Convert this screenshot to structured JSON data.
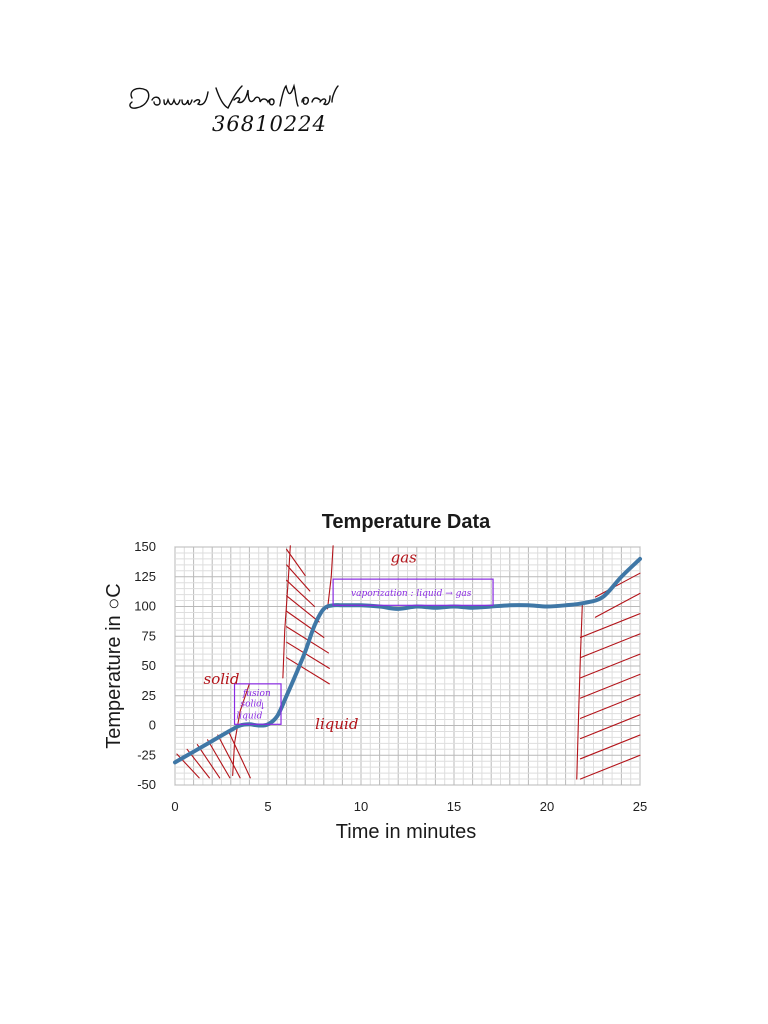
{
  "header": {
    "name": "Damuel Velbro Morgal",
    "id": "36810224"
  },
  "chart_data": {
    "type": "line",
    "title": "Temperature Data",
    "xlabel": "Time in minutes",
    "ylabel": "Temperature in ○C",
    "xlim": [
      0,
      25
    ],
    "ylim": [
      -50,
      150
    ],
    "xticks": [
      0,
      5,
      10,
      15,
      20,
      25
    ],
    "yticks": [
      -50,
      -25,
      0,
      25,
      50,
      75,
      100,
      125,
      150
    ],
    "grid": true,
    "series": [
      {
        "color": "#3f77a6",
        "x": [
          0,
          1,
          2,
          3,
          3.5,
          4,
          4.5,
          5,
          5.5,
          6,
          6.5,
          7,
          7.5,
          8,
          8.5,
          9,
          10,
          11,
          12,
          13,
          14,
          15,
          16,
          17,
          18,
          19,
          20,
          21,
          22,
          23,
          24,
          25
        ],
        "y": [
          -31,
          -22,
          -13,
          -4,
          0,
          1,
          0,
          1,
          8,
          25,
          43,
          62,
          84,
          98,
          101,
          101,
          101,
          100,
          98,
          100,
          99,
          100,
          99,
          100,
          101,
          101,
          100,
          101,
          103,
          108,
          125,
          140
        ]
      }
    ],
    "annotations": [
      {
        "text": "solid",
        "x": 2.5,
        "y": 35,
        "color": "#b3141a"
      },
      {
        "text": "gas",
        "x": 12.3,
        "y": 137,
        "color": "#b3141a"
      },
      {
        "text": "liquid",
        "x": 8.7,
        "y": -3,
        "color": "#b3141a"
      },
      {
        "text": "fusion",
        "x": 4.4,
        "y": 25,
        "color": "#8a2be2"
      },
      {
        "text": "solid",
        "x": 4.1,
        "y": 16,
        "color": "#8a2be2"
      },
      {
        "text": "↓",
        "x": 4.7,
        "y": 14,
        "color": "#8a2be2"
      },
      {
        "text": "liquid",
        "x": 4.0,
        "y": 6,
        "color": "#8a2be2"
      },
      {
        "text": "vaporization : liquid → gas",
        "x": 12.7,
        "y": 109,
        "color": "#8a2be2"
      }
    ]
  }
}
